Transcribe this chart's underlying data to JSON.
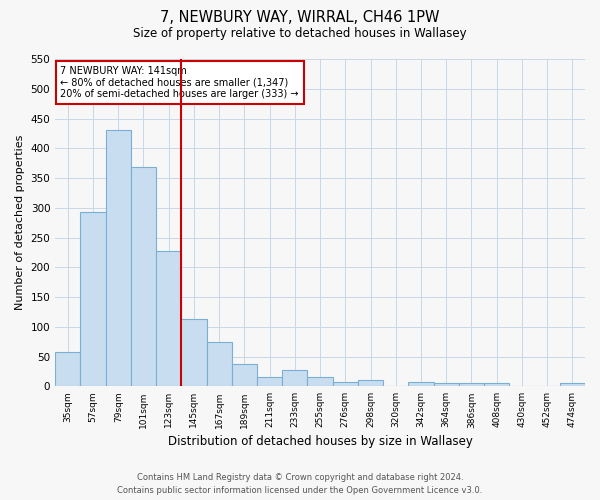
{
  "title_line1": "7, NEWBURY WAY, WIRRAL, CH46 1PW",
  "title_line2": "Size of property relative to detached houses in Wallasey",
  "xlabel": "Distribution of detached houses by size in Wallasey",
  "ylabel": "Number of detached properties",
  "bar_labels": [
    "35sqm",
    "57sqm",
    "79sqm",
    "101sqm",
    "123sqm",
    "145sqm",
    "167sqm",
    "189sqm",
    "211sqm",
    "233sqm",
    "255sqm",
    "276sqm",
    "298sqm",
    "320sqm",
    "342sqm",
    "364sqm",
    "386sqm",
    "408sqm",
    "430sqm",
    "452sqm",
    "474sqm"
  ],
  "bar_values": [
    57,
    293,
    430,
    368,
    228,
    113,
    75,
    38,
    15,
    28,
    15,
    8,
    10,
    0,
    8,
    5,
    5,
    5,
    0,
    0,
    5
  ],
  "bar_color": "#c9ddf0",
  "bar_edge_color": "#7aafd4",
  "vline_color": "#cc0000",
  "annotation_title": "7 NEWBURY WAY: 141sqm",
  "annotation_line1": "← 80% of detached houses are smaller (1,347)",
  "annotation_line2": "20% of semi-detached houses are larger (333) →",
  "annotation_box_color": "#ffffff",
  "annotation_box_edgecolor": "#cc0000",
  "ylim": [
    0,
    550
  ],
  "yticks": [
    0,
    50,
    100,
    150,
    200,
    250,
    300,
    350,
    400,
    450,
    500,
    550
  ],
  "footer_line1": "Contains HM Land Registry data © Crown copyright and database right 2024.",
  "footer_line2": "Contains public sector information licensed under the Open Government Licence v3.0.",
  "background_color": "#f7f7f7"
}
